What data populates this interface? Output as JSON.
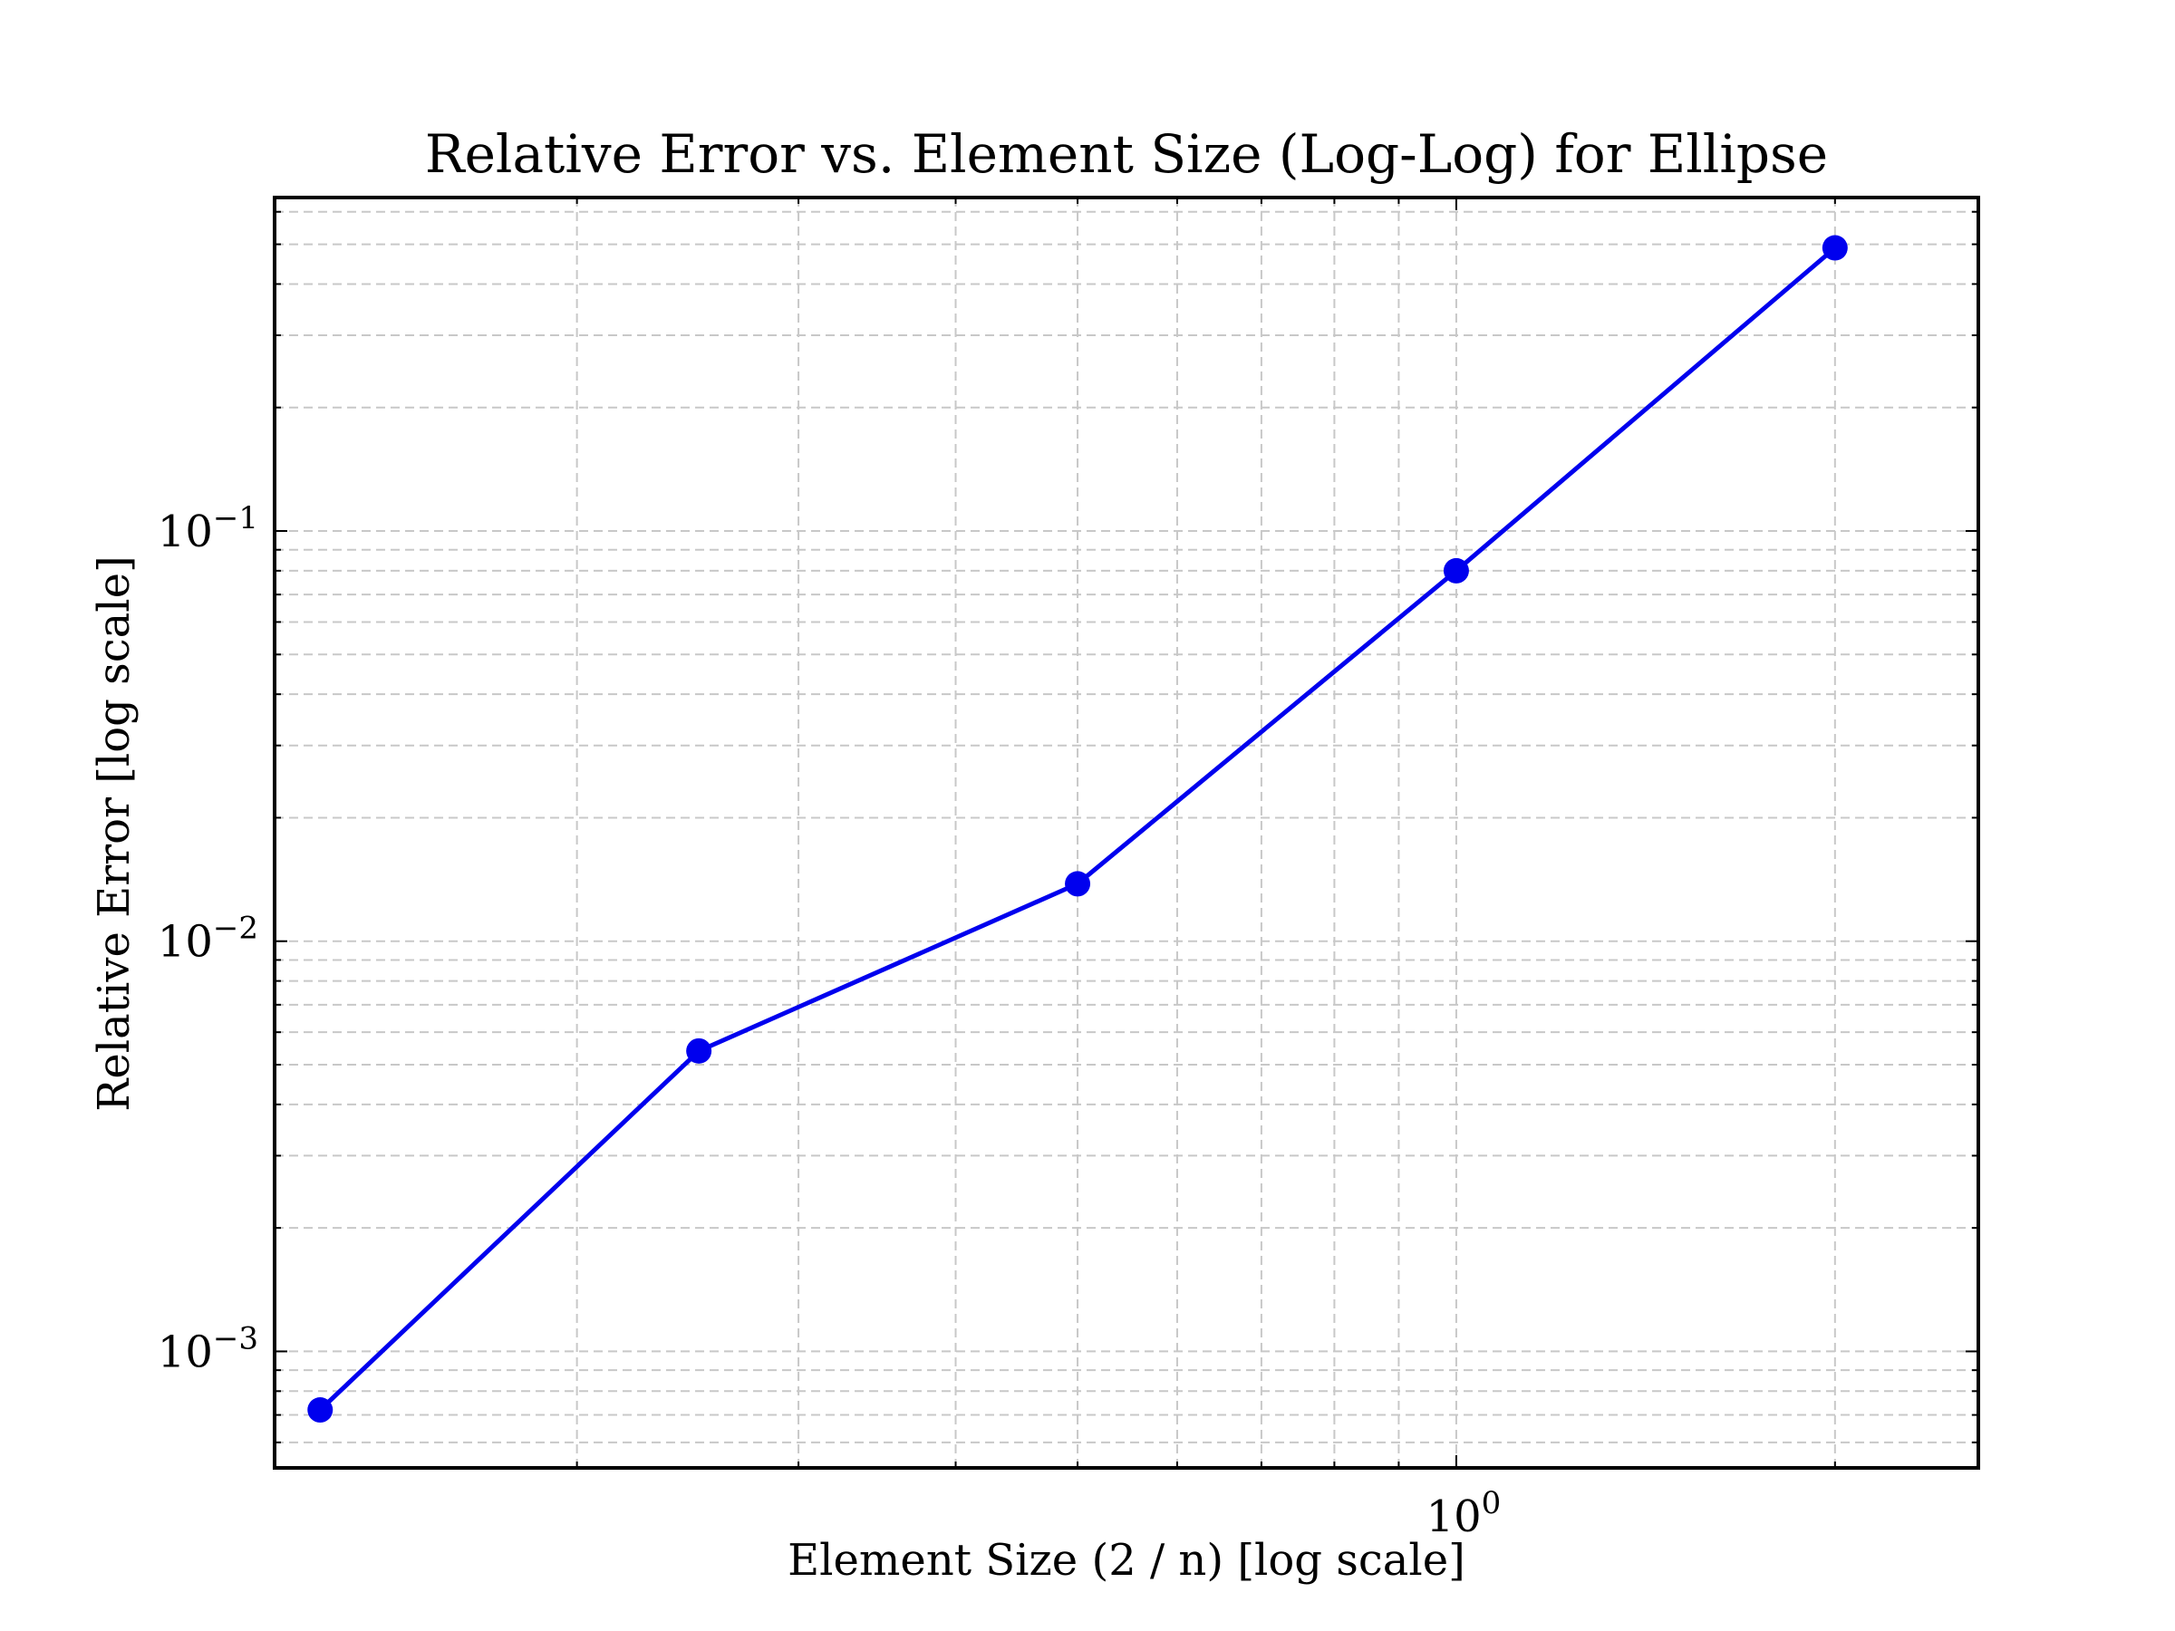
{
  "chart_data": {
    "type": "line",
    "title": "Relative Error vs. Element Size (Log-Log) for Ellipse",
    "xlabel": "Element Size (2 / n) [log scale]",
    "ylabel": "Relative Error [log scale]",
    "x_scale": "log",
    "y_scale": "log",
    "xlim": [
      0.115,
      2.6
    ],
    "ylim": [
      0.00052,
      0.65
    ],
    "grid": true,
    "grid_style": "dashed",
    "x_ticks": [
      {
        "value": 1,
        "base": "10",
        "exp": "0"
      }
    ],
    "y_ticks": [
      {
        "value": 0.1,
        "base": "10",
        "exp": "−1"
      },
      {
        "value": 0.01,
        "base": "10",
        "exp": "−2"
      },
      {
        "value": 0.001,
        "base": "10",
        "exp": "−3"
      }
    ],
    "series": [
      {
        "color": "#0000ee",
        "marker": "circle",
        "x": [
          0.125,
          0.25,
          0.5,
          1.0,
          2.0
        ],
        "y": [
          0.00072,
          0.0054,
          0.0138,
          0.08,
          0.49
        ]
      }
    ]
  }
}
